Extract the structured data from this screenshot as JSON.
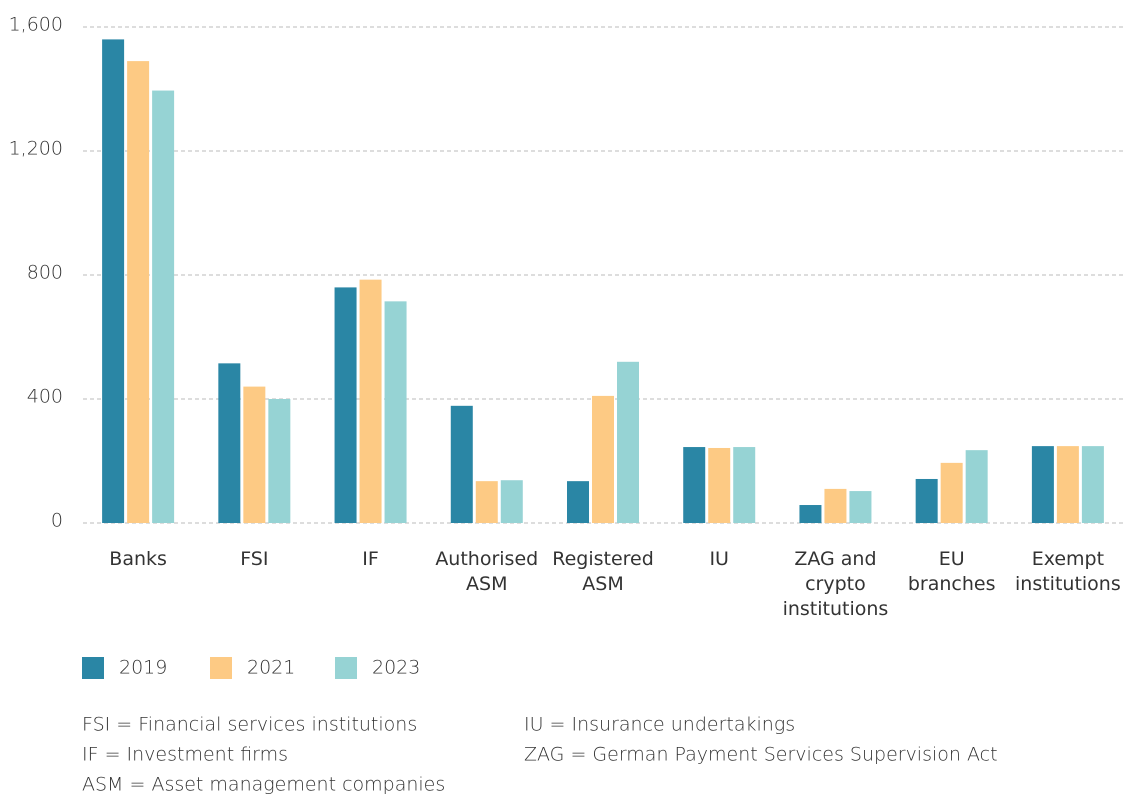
{
  "chart_data": {
    "type": "bar",
    "categories": [
      "Banks",
      "FSI",
      "IF",
      "Authorised\nASM",
      "Registered\nASM",
      "IU",
      "ZAG and\ncrypto\ninstitutions",
      "EU\nbranches",
      "Exempt\ninstitutions"
    ],
    "series": [
      {
        "name": "2019",
        "color": "#2a86a5",
        "values": [
          1560,
          515,
          760,
          378,
          135,
          245,
          58,
          142,
          248
        ]
      },
      {
        "name": "2021",
        "color": "#fdca84",
        "values": [
          1490,
          440,
          785,
          135,
          410,
          242,
          110,
          194,
          248
        ]
      },
      {
        "name": "2023",
        "color": "#96d3d4",
        "values": [
          1395,
          400,
          715,
          138,
          520,
          245,
          103,
          235,
          248
        ]
      }
    ],
    "ylim": [
      0,
      1600
    ],
    "yticks": [
      0,
      400,
      800,
      {
        "value": 1200,
        "label": "1,200"
      },
      {
        "value": 1600,
        "label": "1,600"
      }
    ],
    "grid": true,
    "notes": [
      [
        "FSI = Financial services institutions",
        "IF = Investment firms",
        "ASM = Asset management companies"
      ],
      [
        "IU = Insurance undertakings",
        "ZAG = German Payment Services Supervision Act"
      ]
    ]
  }
}
